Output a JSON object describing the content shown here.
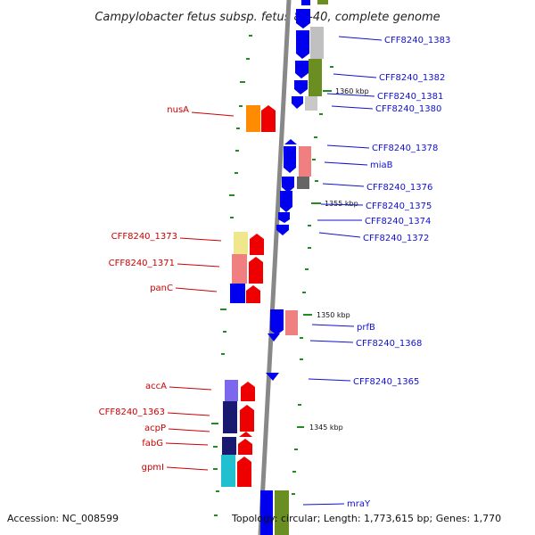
{
  "title": "Campylobacter fetus subsp. fetus 82-40, complete genome",
  "footer": {
    "accession": "Accession: NC_008599",
    "topology": "Topology: circular; Length: 1,773,615 bp; Genes: 1,770"
  },
  "ticks": [
    "1360 kbp",
    "1355 kbp",
    "1350 kbp",
    "1345 kbp"
  ],
  "genes_right": [
    "CFF8240_1383",
    "CFF8240_1382",
    "CFF8240_1381",
    "CFF8240_1380",
    "CFF8240_1378",
    "miaB",
    "CFF8240_1376",
    "CFF8240_1375",
    "CFF8240_1374",
    "CFF8240_1372",
    "prfB",
    "CFF8240_1368",
    "CFF8240_1365",
    "mraY"
  ],
  "genes_left": [
    "nusA",
    "CFF8240_1373",
    "CFF8240_1371",
    "panC",
    "accA",
    "CFF8240_1363",
    "acpP",
    "fabG",
    "gpmI"
  ],
  "colors": {
    "forward_strand": "#0000ee",
    "reverse_strand": "#ee0000",
    "backbone": "#888888",
    "gc_marks": "#228b22"
  }
}
